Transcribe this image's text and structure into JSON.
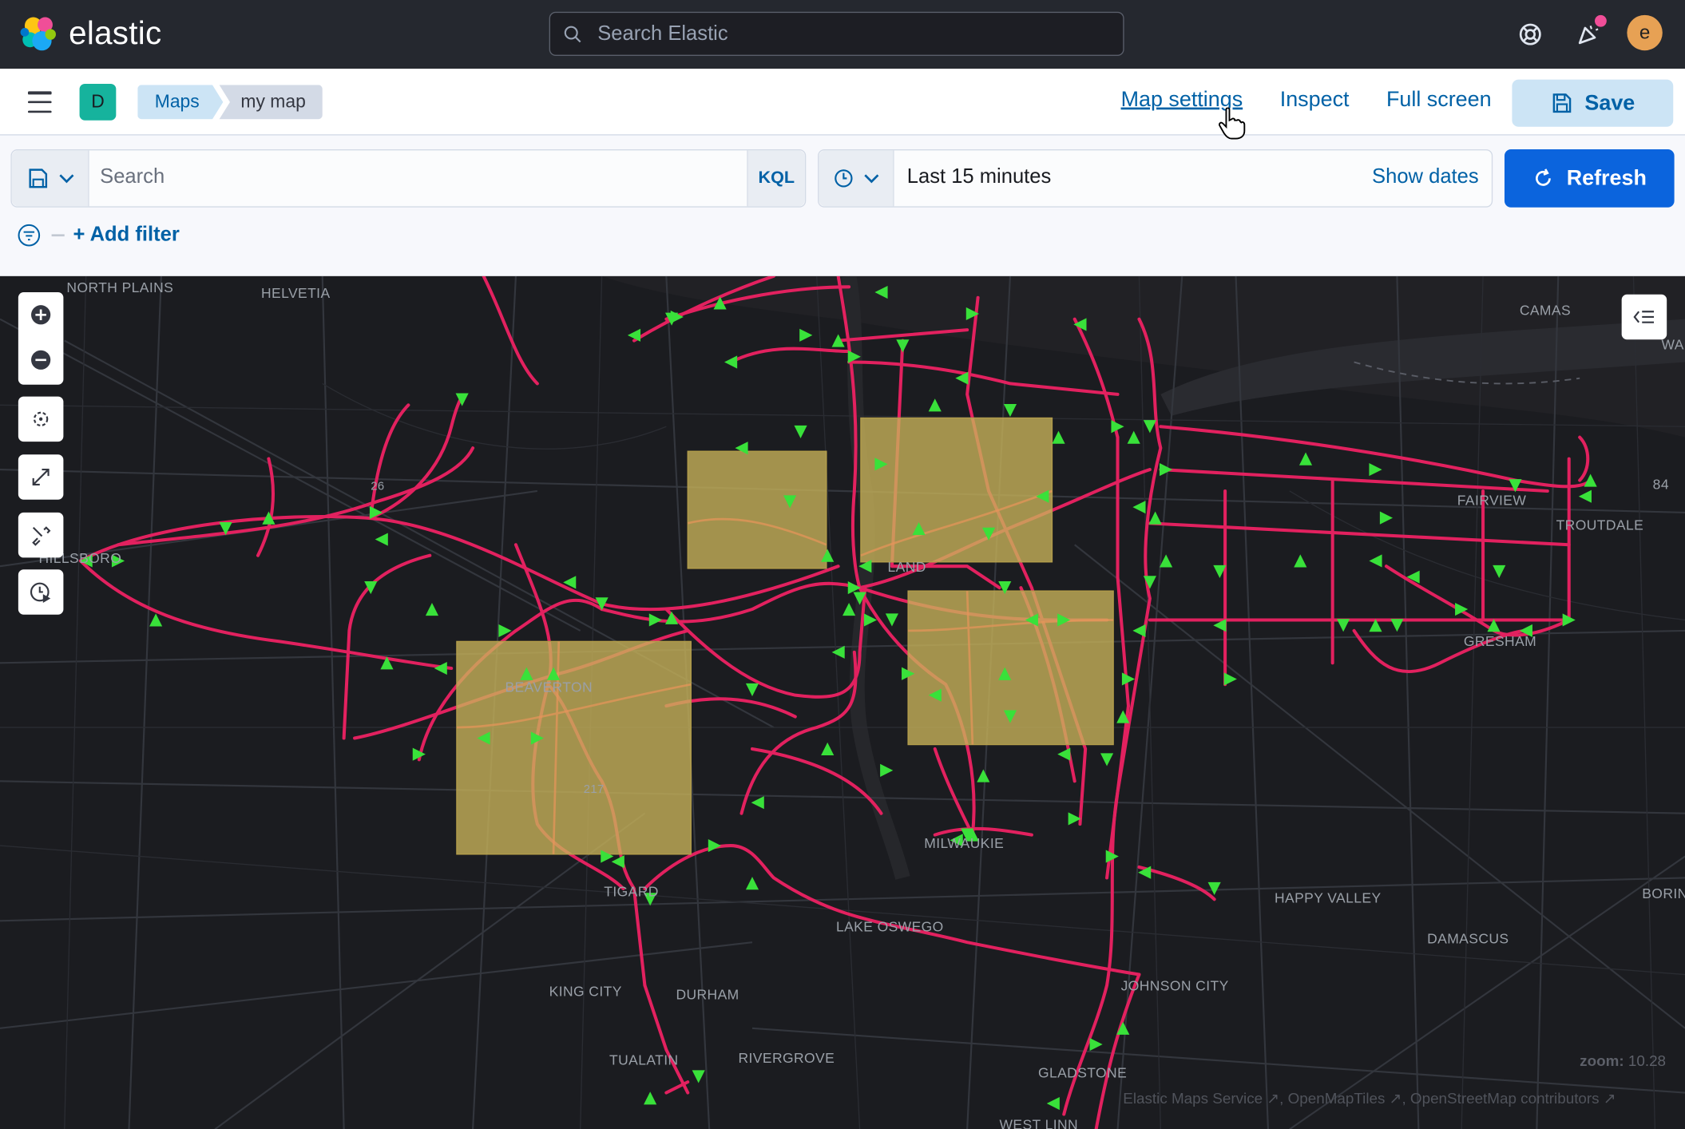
{
  "header": {
    "app_name": "elastic",
    "search_placeholder": "Search Elastic",
    "avatar_initial": "e"
  },
  "subnav": {
    "space_initial": "D",
    "breadcrumbs": [
      "Maps",
      "my map"
    ],
    "links": {
      "map_settings": "Map settings",
      "inspect": "Inspect",
      "full_screen": "Full screen"
    },
    "save_label": "Save"
  },
  "query": {
    "placeholder": "Search",
    "language": "KQL",
    "time_range": "Last 15 minutes",
    "show_dates": "Show dates",
    "refresh_label": "Refresh",
    "add_filter": "+ Add filter"
  },
  "map": {
    "place_labels": [
      "NORTH PLAINS",
      "HELVETIA",
      "CAMAS",
      "WA",
      "84",
      "FAIRVIEW",
      "TROUTDALE",
      "HILLSBORO",
      "BEAVERTON",
      "LAND",
      "GRESHAM",
      "MILWAUKIE",
      "TIGARD",
      "LAKE OSWEGO",
      "HAPPY VALLEY",
      "BORIN",
      "DAMASCUS",
      "KING CITY",
      "DURHAM",
      "JOHNSON CITY",
      "TUALATIN",
      "RIVERGROVE",
      "GLADSTONE",
      "WEST LINN",
      "26",
      "217"
    ],
    "zoom_label": "zoom:",
    "zoom_value": "10.28",
    "attribution": [
      "Elastic Maps Service",
      "OpenMapTiles",
      "OpenStreetMap contributors"
    ],
    "colors": {
      "routes": "#e2215f",
      "vehicles": "#39e13a",
      "boxes": "#c9b35a"
    }
  }
}
